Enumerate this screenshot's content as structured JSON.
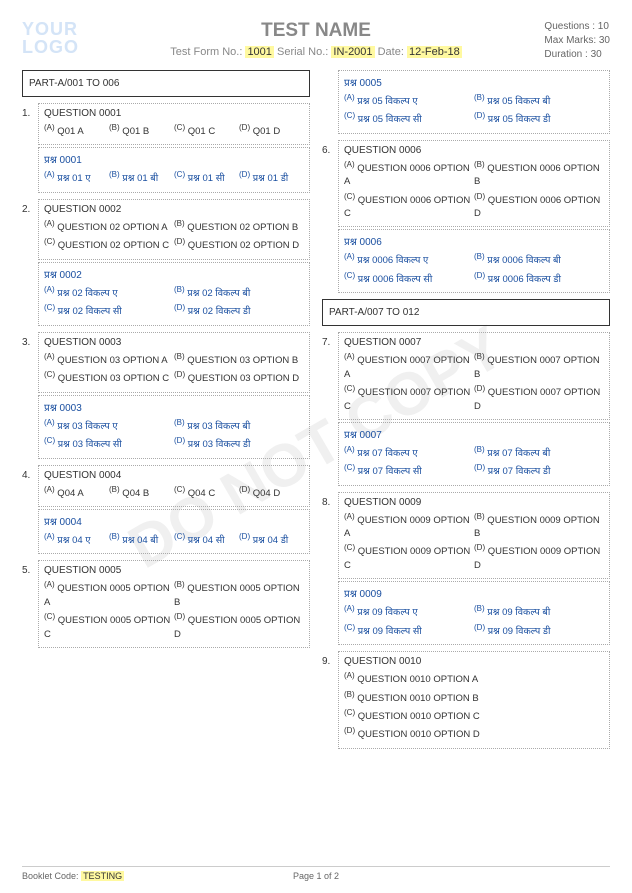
{
  "watermark": "DO NOT COPY",
  "logo": {
    "l1": "YOUR",
    "l2": "LOGO"
  },
  "title": "TEST NAME",
  "meta": {
    "form_label": "Test Form No.:",
    "form_no": "1001",
    "serial_label": "Serial No.:",
    "serial_no": "IN-2001",
    "date_label": "Date:",
    "date": "12-Feb-18"
  },
  "info": {
    "qcount_label": "Questions  :",
    "qcount": "10",
    "marks_label": "Max Marks:",
    "marks": "30",
    "dur_label": "Duration    :",
    "dur": "30"
  },
  "section1": "PART-A/001 TO 006",
  "section2": "PART-A/007 TO 012",
  "q1": {
    "num": "1.",
    "en_title": "QUESTION 0001",
    "en_opts": [
      "Q01 A",
      "Q01 B",
      "Q01 C",
      "Q01 D"
    ],
    "hi_title": "प्रश्न  0001",
    "hi_opts": [
      "प्रश्न  01 ए",
      "प्रश्न  01 बी",
      "प्रश्न  01 सी",
      "प्रश्न  01 डी"
    ]
  },
  "q2": {
    "num": "2.",
    "en_title": "QUESTION 0002",
    "en_opts": [
      "QUESTION 02 OPTION A",
      "QUESTION 02 OPTION B",
      "QUESTION 02 OPTION C",
      "QUESTION 02 OPTION D"
    ],
    "hi_title": "प्रश्न  0002",
    "hi_opts": [
      "प्रश्न  02 विकल्प  ए",
      "प्रश्न  02 विकल्प  बी",
      "प्रश्न  02 विकल्प  सी",
      "प्रश्न  02 विकल्प  डी"
    ]
  },
  "q3": {
    "num": "3.",
    "en_title": "QUESTION 0003",
    "en_opts": [
      "QUESTION 03 OPTION A",
      "QUESTION 03 OPTION B",
      "QUESTION 03 OPTION C",
      "QUESTION 03 OPTION D"
    ],
    "hi_title": "प्रश्न  0003",
    "hi_opts": [
      "प्रश्न  03 विकल्प  ए",
      "प्रश्न  03 विकल्प  बी",
      "प्रश्न  03 विकल्प  सी",
      "प्रश्न  03 विकल्प  डी"
    ]
  },
  "q4": {
    "num": "4.",
    "en_title": "QUESTION 0004",
    "en_opts": [
      "Q04 A",
      "Q04 B",
      "Q04 C",
      "Q04 D"
    ],
    "hi_title": "प्रश्न  0004",
    "hi_opts": [
      "प्रश्न  04 ए",
      "प्रश्न  04 बी",
      "प्रश्न  04 सी",
      "प्रश्न  04 डी"
    ]
  },
  "q5": {
    "num": "5.",
    "en_title": "QUESTION 0005",
    "en_opts": [
      "QUESTION 0005 OPTION A",
      "QUESTION 0005 OPTION B",
      "QUESTION 0005 OPTION C",
      "QUESTION 0005 OPTION D"
    ],
    "hi_title": "प्रश्न  0005",
    "hi_opts": [
      "प्रश्न  05 विकल्प  ए",
      "प्रश्न  05 विकल्प  बी",
      "प्रश्न  05 विकल्प  सी",
      "प्रश्न  05 विकल्प  डी"
    ]
  },
  "q6": {
    "num": "6.",
    "en_title": "QUESTION 0006",
    "en_opts": [
      "QUESTION 0006 OPTION A",
      "QUESTION 0006 OPTION B",
      "QUESTION 0006 OPTION C",
      "QUESTION 0006 OPTION D"
    ],
    "hi_title": "प्रश्न  0006",
    "hi_opts": [
      "प्रश्न  0006 विकल्प  ए",
      "प्रश्न  0006 विकल्प  बी",
      "प्रश्न  0006 विकल्प  सी",
      "प्रश्न  0006 विकल्प  डी"
    ]
  },
  "q7": {
    "num": "7.",
    "en_title": "QUESTION 0007",
    "en_opts": [
      "QUESTION 0007 OPTION A",
      "QUESTION 0007 OPTION B",
      "QUESTION 0007 OPTION C",
      "QUESTION 0007 OPTION D"
    ],
    "hi_title": "प्रश्न  0007",
    "hi_opts": [
      "प्रश्न  07 विकल्प  ए",
      "प्रश्न  07 विकल्प  बी",
      "प्रश्न  07 विकल्प  सी",
      "प्रश्न  07 विकल्प  डी"
    ]
  },
  "q8": {
    "num": "8.",
    "en_title": "QUESTION 0009",
    "en_opts": [
      "QUESTION 0009 OPTION A",
      "QUESTION 0009 OPTION B",
      "QUESTION 0009 OPTION C",
      "QUESTION 0009 OPTION D"
    ],
    "hi_title": "प्रश्न  0009",
    "hi_opts": [
      "प्रश्न  09 विकल्प  ए",
      "प्रश्न  09 विकल्प  बी",
      "प्रश्न  09 विकल्प  सी",
      "प्रश्न  09 विकल्प  डी"
    ]
  },
  "q9": {
    "num": "9.",
    "en_title": "QUESTION 0010",
    "en_opts": [
      "QUESTION 0010 OPTION A",
      "QUESTION 0010 OPTION B",
      "QUESTION 0010 OPTION C",
      "QUESTION 0010 OPTION D"
    ]
  },
  "labels": [
    "(A)",
    "(B)",
    "(C)",
    "(D)"
  ],
  "footer": {
    "code_label": "Booklet Code:",
    "code": "TESTING",
    "page": "Page 1 of 2"
  }
}
